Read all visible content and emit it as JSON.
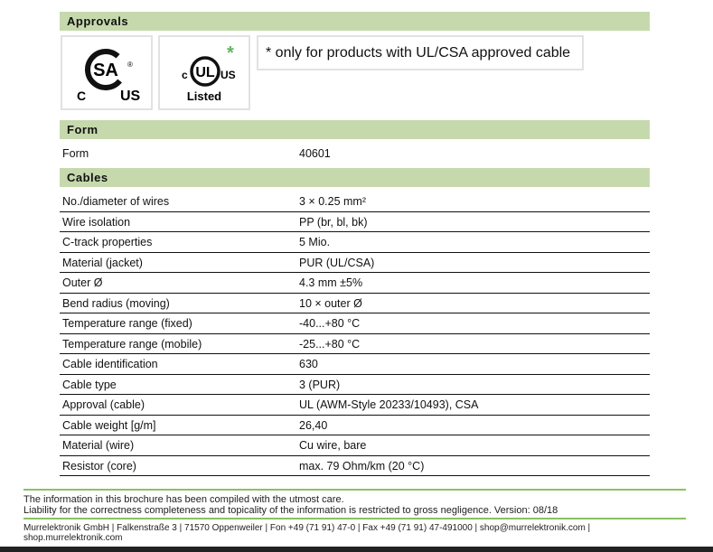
{
  "approvals": {
    "title": "Approvals",
    "note": "* only for products with UL/CSA approved cable",
    "logos": [
      {
        "name": "csa-logo",
        "text": "CSA c US"
      },
      {
        "name": "ul-listed-logo",
        "text": "c UL US Listed"
      }
    ]
  },
  "form": {
    "title": "Form",
    "rows": [
      {
        "label": "Form",
        "value": "40601"
      }
    ]
  },
  "cables": {
    "title": "Cables",
    "rows": [
      {
        "label": "No./diameter of wires",
        "value": "3 × 0.25 mm²"
      },
      {
        "label": "Wire isolation",
        "value": "PP (br, bl, bk)"
      },
      {
        "label": "C-track properties",
        "value": "5 Mio."
      },
      {
        "label": "Material (jacket)",
        "value": "PUR (UL/CSA)"
      },
      {
        "label": "Outer Ø",
        "value": "4.3 mm ±5%"
      },
      {
        "label": "Bend radius (moving)",
        "value": "10 × outer Ø"
      },
      {
        "label": "Temperature range (fixed)",
        "value": "-40...+80 °C"
      },
      {
        "label": "Temperature range (mobile)",
        "value": "-25...+80 °C"
      },
      {
        "label": "Cable identification",
        "value": "630"
      },
      {
        "label": "Cable type",
        "value": "3 (PUR)"
      },
      {
        "label": "Approval (cable)",
        "value": "UL (AWM-Style 20233/10493), CSA"
      },
      {
        "label": "Cable weight [g/m]",
        "value": "26,40"
      },
      {
        "label": "Material (wire)",
        "value": "Cu wire, bare"
      },
      {
        "label": "Resistor (core)",
        "value": "max. 79 Ohm/km (20 °C)"
      }
    ]
  },
  "footer": {
    "line1": "The information in this brochure has been compiled with the utmost care.",
    "line2": "Liability for the correctness completeness and topicality of the information is restricted to gross negligence. Version: 08/18",
    "contact1": "Murrelektronik GmbH | Falkenstraße 3 | 71570 Oppenweiler | Fon +49 (71 91) 47-0 | Fax +49 (71 91) 47-491000 | shop@murrelektronik.com |",
    "contact2": "shop.murrelektronik.com"
  },
  "colors": {
    "header_bar": "#c6d9ad",
    "accent_line": "#8cc063",
    "ul_star": "#5cb85c"
  }
}
